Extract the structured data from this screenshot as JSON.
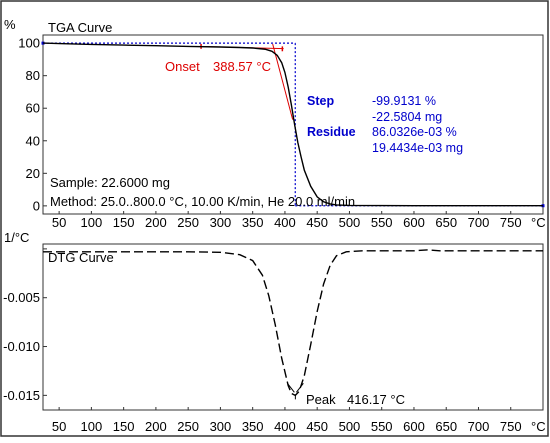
{
  "colors": {
    "curve": "#000000",
    "blue": "#0000cc",
    "red": "#dd0000",
    "frame": "#333333"
  },
  "tga": {
    "unit": "%",
    "title": "TGA Curve",
    "onset_label": "Onset",
    "onset_value": "388.57 °C",
    "step_label": "Step",
    "step_value1": "-99.9131 %",
    "step_value2": "-22.5804 mg",
    "residue_label": "Residue",
    "residue_value1": "86.0326e-03 %",
    "residue_value2": "19.4434e-03 mg",
    "sample_text": "Sample:  22.6000 mg",
    "method_text": "Method: 25.0..800.0 °C, 10.00 K/min, He 20.0 ml/min"
  },
  "dtg": {
    "unit": "1/°C",
    "title": "DTG Curve",
    "peak_label": "Peak",
    "peak_value": "416.17 °C"
  },
  "axis_unit_label": "°C",
  "chart_data": [
    {
      "type": "line",
      "title": "TGA Curve",
      "ylabel": "%",
      "xlabel": "°C",
      "xlim": [
        25,
        800
      ],
      "ylim": [
        -5,
        105
      ],
      "xticks": [
        50,
        100,
        150,
        200,
        250,
        300,
        350,
        400,
        450,
        500,
        550,
        600,
        650,
        700,
        750
      ],
      "yticks": [
        0,
        20,
        40,
        60,
        80,
        100
      ],
      "series": [
        {
          "x": [
            25,
            50,
            100,
            150,
            200,
            250,
            300,
            330,
            350,
            370,
            380,
            388,
            395,
            400,
            405,
            410,
            415,
            420,
            425,
            430,
            440,
            450,
            460,
            470,
            480,
            500,
            550,
            600,
            700,
            800
          ],
          "y": [
            100,
            99.7,
            99.2,
            98.8,
            98.4,
            98.0,
            97.6,
            97.3,
            97.0,
            96.2,
            95.0,
            92.5,
            88.0,
            82.0,
            73.0,
            62.0,
            50.0,
            39.0,
            30.0,
            22.0,
            12.0,
            5.5,
            2.5,
            1.2,
            0.6,
            0.3,
            0.15,
            0.1,
            0.09,
            0.09
          ]
        }
      ]
    },
    {
      "type": "line",
      "title": "DTG Curve",
      "ylabel": "1/°C",
      "xlabel": "°C",
      "xlim": [
        25,
        800
      ],
      "ylim": [
        -0.0165,
        0.0005
      ],
      "xticks": [
        50,
        100,
        150,
        200,
        250,
        300,
        350,
        400,
        450,
        500,
        550,
        600,
        650,
        700,
        750
      ],
      "yticks": [
        0,
        -0.005,
        -0.01,
        -0.015
      ],
      "ytick_labels": [
        "",
        "-0.005",
        "-0.010",
        "-0.015"
      ],
      "series": [
        {
          "x": [
            25,
            60,
            100,
            150,
            200,
            250,
            300,
            330,
            350,
            365,
            375,
            385,
            395,
            405,
            410,
            416,
            422,
            430,
            440,
            450,
            460,
            470,
            480,
            495,
            520,
            560,
            600,
            620,
            640,
            680,
            720,
            760,
            800
          ],
          "y": [
            -0.0003,
            -0.0003,
            -0.0003,
            -0.0003,
            -0.0003,
            -0.0003,
            -0.00035,
            -0.0006,
            -0.0012,
            -0.0027,
            -0.0048,
            -0.0078,
            -0.0112,
            -0.014,
            -0.0148,
            -0.015,
            -0.0146,
            -0.013,
            -0.0098,
            -0.0064,
            -0.0036,
            -0.0017,
            -0.0007,
            -0.0003,
            -0.0002,
            -0.0002,
            -0.0002,
            -0.0001,
            -0.0002,
            -0.0002,
            -0.0002,
            -0.0002,
            -0.0002
          ]
        }
      ]
    }
  ]
}
